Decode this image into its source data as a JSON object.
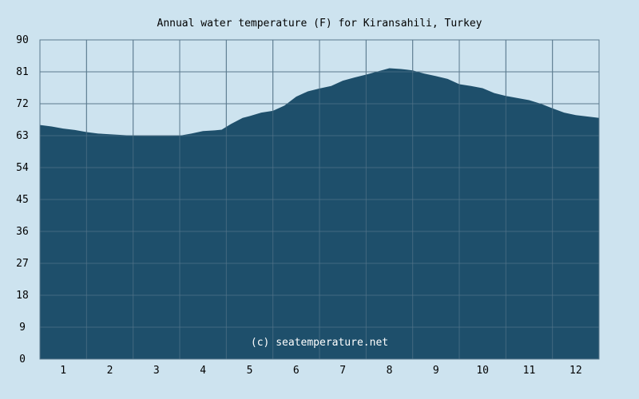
{
  "chart_data": {
    "type": "area",
    "title": "Annual water temperature (F) for Kiransahili, Turkey",
    "watermark": "(c) seatemperature.net",
    "xlabel": "",
    "ylabel": "",
    "ylim": [
      0,
      90
    ],
    "xlim": [
      0.5,
      12.5
    ],
    "yticks": [
      0,
      9,
      18,
      27,
      36,
      45,
      54,
      63,
      72,
      81,
      90
    ],
    "xticks": [
      1,
      2,
      3,
      4,
      5,
      6,
      7,
      8,
      9,
      10,
      11,
      12
    ],
    "grid": true,
    "colors": {
      "background": "#cde3ef",
      "plot_background": "#cde3ef",
      "fill": "#1e4f6b",
      "grid": "#5a7a8e",
      "text": "#000000"
    },
    "series": [
      {
        "x": [
          0.5,
          0.75,
          1.0,
          1.25,
          1.5,
          1.75,
          2.0,
          2.25,
          2.5,
          2.75,
          3.0,
          3.25,
          3.5,
          3.75,
          4.0,
          4.25,
          4.4,
          4.6,
          4.85,
          5.0,
          5.25,
          5.5,
          5.75,
          6.0,
          6.25,
          6.5,
          6.75,
          7.0,
          7.25,
          7.5,
          7.75,
          8.0,
          8.25,
          8.5,
          8.75,
          9.0,
          9.25,
          9.5,
          9.75,
          10.0,
          10.25,
          10.5,
          10.75,
          11.0,
          11.25,
          11.5,
          11.75,
          12.0,
          12.25,
          12.5
        ],
        "values": [
          66.0,
          65.6,
          65.0,
          64.6,
          64.0,
          63.6,
          63.4,
          63.2,
          63.0,
          62.9,
          62.9,
          62.9,
          63.0,
          63.6,
          64.3,
          64.5,
          64.7,
          66.3,
          68.0,
          68.5,
          69.5,
          70.0,
          71.5,
          74.0,
          75.5,
          76.3,
          77.0,
          78.5,
          79.4,
          80.2,
          81.1,
          82.0,
          81.8,
          81.4,
          80.5,
          79.8,
          79.0,
          77.5,
          77.0,
          76.4,
          75.0,
          74.2,
          73.6,
          73.0,
          72.0,
          70.7,
          69.5,
          68.8,
          68.4,
          68.0
        ]
      }
    ]
  }
}
